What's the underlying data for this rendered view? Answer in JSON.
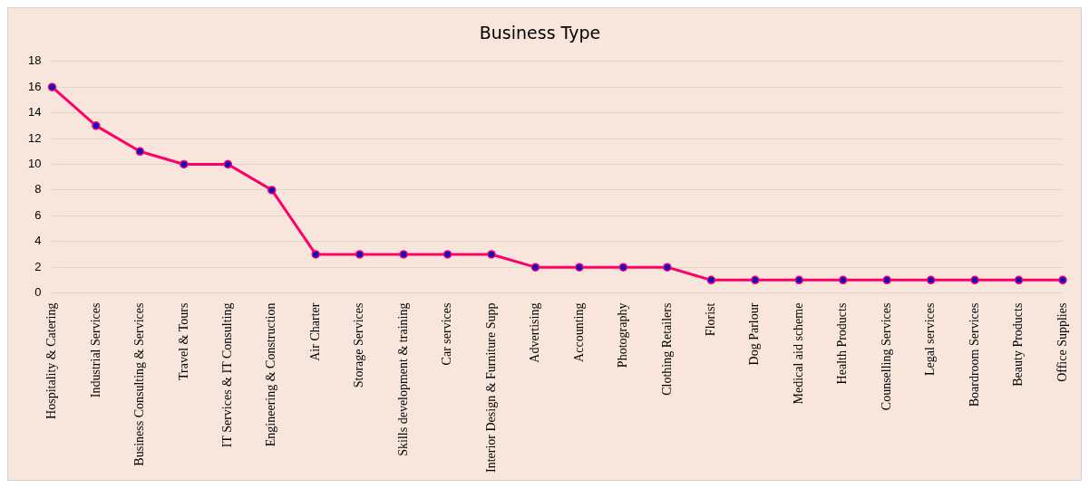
{
  "chart_data": {
    "type": "line",
    "title": "Business Type",
    "categories": [
      "Hospitality & Catering",
      "Industrial Services",
      "Business Consulting & Services",
      "Travel & Tours",
      "IT Services & IT Consulting",
      "Engineering & Construction",
      "Air Charter",
      "Storage Services",
      "Skills development & training",
      "Car services",
      "Interior Design & Furniture Supp",
      "Advertising",
      "Accounting",
      "Photography",
      "Clothing Retailers",
      "Florist",
      "Dog Parlour",
      "Medical aid scheme",
      "Health Products",
      "Counselling Services",
      "Legal services",
      "Boardroom Services",
      "Beauty Products",
      "Office Supplies"
    ],
    "values": [
      16,
      13,
      11,
      10,
      10,
      8,
      3,
      3,
      3,
      3,
      3,
      2,
      2,
      2,
      2,
      1,
      1,
      1,
      1,
      1,
      1,
      1,
      1,
      1
    ],
    "color": "#ff0066",
    "ylim": [
      0,
      18
    ],
    "yticks": [
      0,
      2,
      4,
      6,
      8,
      10,
      12,
      14,
      16,
      18
    ],
    "grid": "y",
    "legend": false,
    "marker": "circle",
    "line_style": "solid"
  }
}
